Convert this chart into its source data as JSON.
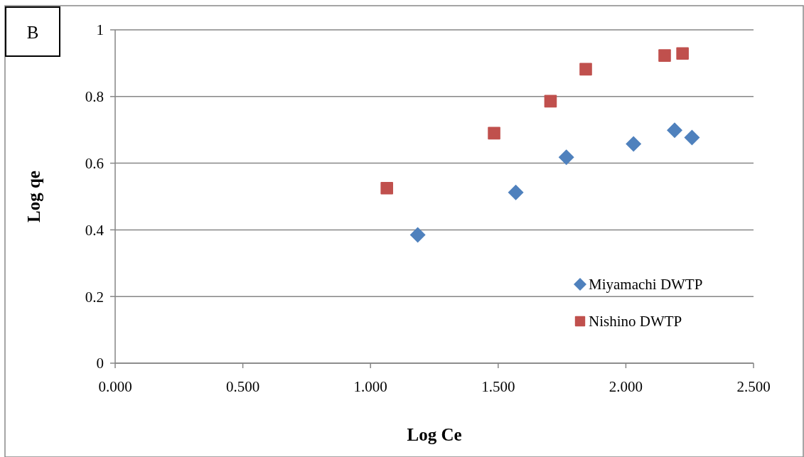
{
  "chart_data": {
    "type": "scatter",
    "xlabel": "Log Ce",
    "ylabel": "Log qe",
    "annotations": [
      "B"
    ],
    "xlim": [
      0,
      2.5
    ],
    "xticks": [
      {
        "value": 0,
        "label": "0.000"
      },
      {
        "value": 0.5,
        "label": "0.500"
      },
      {
        "value": 1,
        "label": "1.000"
      },
      {
        "value": 1.5,
        "label": "1.500"
      },
      {
        "value": 2,
        "label": "2.000"
      },
      {
        "value": 2.5,
        "label": "2.500"
      }
    ],
    "ylim": [
      0,
      1
    ],
    "yticks": [
      0,
      0.2,
      0.4,
      0.6,
      0.8,
      1
    ],
    "grid": "y",
    "legend": "bottom right",
    "series": [
      {
        "name": "Miyamachi DWTP",
        "color": "#4f81bd",
        "marker": "diamond",
        "x": [
          1.185,
          1.569,
          1.767,
          2.03,
          2.191,
          2.259
        ],
        "values": [
          0.385,
          0.512,
          0.618,
          0.658,
          0.699,
          0.677
        ]
      },
      {
        "name": "Nishino DWTP",
        "color": "#c0504d",
        "marker": "square",
        "x": [
          1.064,
          1.484,
          1.705,
          1.843,
          2.152,
          2.222
        ],
        "values": [
          0.525,
          0.69,
          0.786,
          0.882,
          0.923,
          0.929
        ]
      }
    ]
  }
}
